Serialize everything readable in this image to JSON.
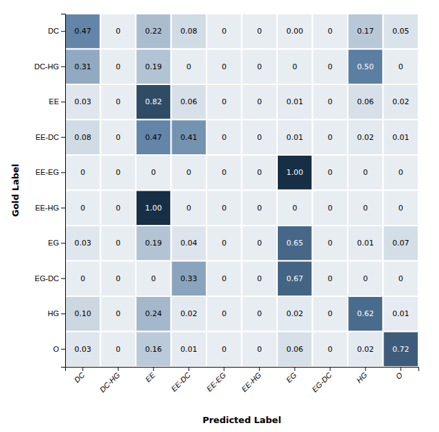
{
  "chart_data": {
    "type": "heatmap",
    "xlabel": "Predicted Label",
    "ylabel": "Gold Label",
    "categories": [
      "DC",
      "DC-HG",
      "EE",
      "EE-DC",
      "EE-EG",
      "EE-HG",
      "EG",
      "EG-DC",
      "HG",
      "O"
    ],
    "matrix": [
      [
        0.47,
        0,
        0.22,
        0.08,
        0,
        0,
        0.0,
        0,
        0.17,
        0.05
      ],
      [
        0.31,
        0,
        0.19,
        0,
        0,
        0,
        0,
        0,
        0.5,
        0
      ],
      [
        0.03,
        0,
        0.82,
        0.06,
        0,
        0,
        0.01,
        0,
        0.06,
        0.02
      ],
      [
        0.08,
        0,
        0.47,
        0.41,
        0,
        0,
        0.01,
        0,
        0.02,
        0.01
      ],
      [
        0,
        0,
        0,
        0,
        0,
        0,
        1.0,
        0,
        0,
        0
      ],
      [
        0,
        0,
        1.0,
        0,
        0,
        0,
        0,
        0,
        0,
        0
      ],
      [
        0.03,
        0,
        0.19,
        0.04,
        0,
        0,
        0.65,
        0,
        0.01,
        0.07
      ],
      [
        0,
        0,
        0,
        0.33,
        0,
        0,
        0.67,
        0,
        0,
        0
      ],
      [
        0.1,
        0,
        0.24,
        0.02,
        0,
        0,
        0.02,
        0,
        0.62,
        0.01
      ],
      [
        0.03,
        0,
        0.16,
        0.01,
        0,
        0,
        0.06,
        0,
        0.02,
        0.72
      ]
    ],
    "value_labels": [
      [
        "0.47",
        "0",
        "0.22",
        "0.08",
        "0",
        "0",
        "0.00",
        "0",
        "0.17",
        "0.05"
      ],
      [
        "0.31",
        "0",
        "0.19",
        "0",
        "0",
        "0",
        "0",
        "0",
        "0.50",
        "0"
      ],
      [
        "0.03",
        "0",
        "0.82",
        "0.06",
        "0",
        "0",
        "0.01",
        "0",
        "0.06",
        "0.02"
      ],
      [
        "0.08",
        "0",
        "0.47",
        "0.41",
        "0",
        "0",
        "0.01",
        "0",
        "0.02",
        "0.01"
      ],
      [
        "0",
        "0",
        "0",
        "0",
        "0",
        "0",
        "1.00",
        "0",
        "0",
        "0"
      ],
      [
        "0",
        "0",
        "1.00",
        "0",
        "0",
        "0",
        "0",
        "0",
        "0",
        "0"
      ],
      [
        "0.03",
        "0",
        "0.19",
        "0.04",
        "0",
        "0",
        "0.65",
        "0",
        "0.01",
        "0.07"
      ],
      [
        "0",
        "0",
        "0",
        "0.33",
        "0",
        "0",
        "0.67",
        "0",
        "0",
        "0"
      ],
      [
        "0.10",
        "0",
        "0.24",
        "0.02",
        "0",
        "0",
        "0.02",
        "0",
        "0.62",
        "0.01"
      ],
      [
        "0.03",
        "0",
        "0.16",
        "0.01",
        "0",
        "0",
        "0.06",
        "0",
        "0.02",
        "0.72"
      ]
    ],
    "data_labels": true,
    "colors": [
      "#e8edf2",
      "#5b7fa3",
      "#162f45"
    ],
    "zlim": [
      0,
      1
    ]
  }
}
